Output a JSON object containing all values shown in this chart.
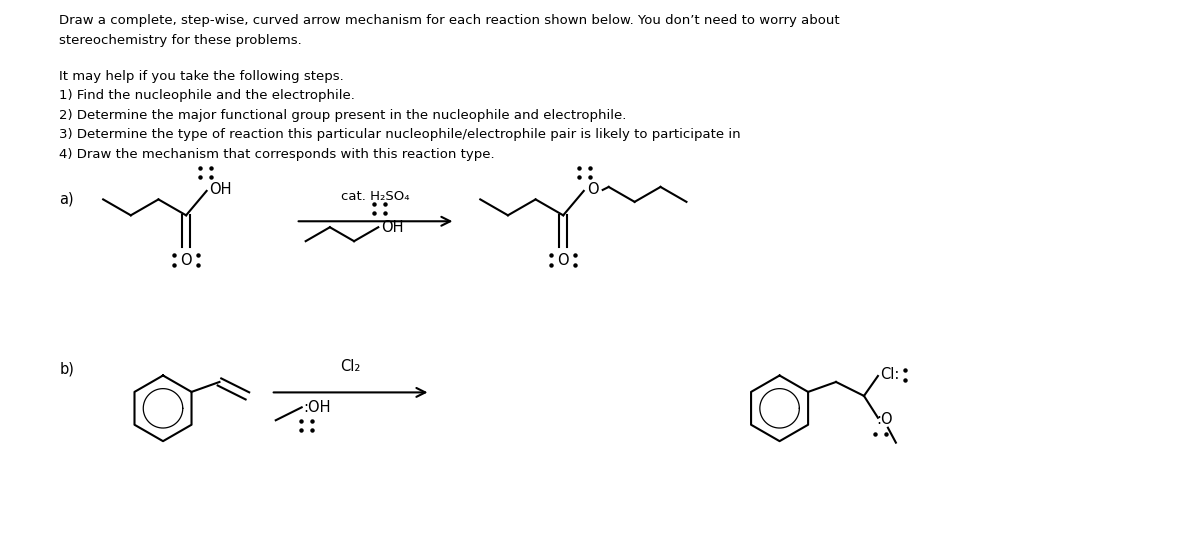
{
  "background": "#ffffff",
  "text_color": "#000000",
  "title_lines": [
    "Draw a complete, step-wise, curved arrow mechanism for each reaction shown below. You don’t need to worry about",
    "stereochemistry for these problems."
  ],
  "instructions": [
    "It may help if you take the following steps.",
    "1) Find the nucleophile and the electrophile.",
    "2) Determine the major functional group present in the nucleophile and electrophile.",
    "3) Determine the type of reaction this particular nucleophile/electrophile pair is likely to participate in",
    "4) Draw the mechanism that corresponds with this reaction type."
  ],
  "label_a": "a)",
  "label_b": "b)",
  "cat_h2so4": "cat. H₂SO₄",
  "cl2": "Cl₂"
}
